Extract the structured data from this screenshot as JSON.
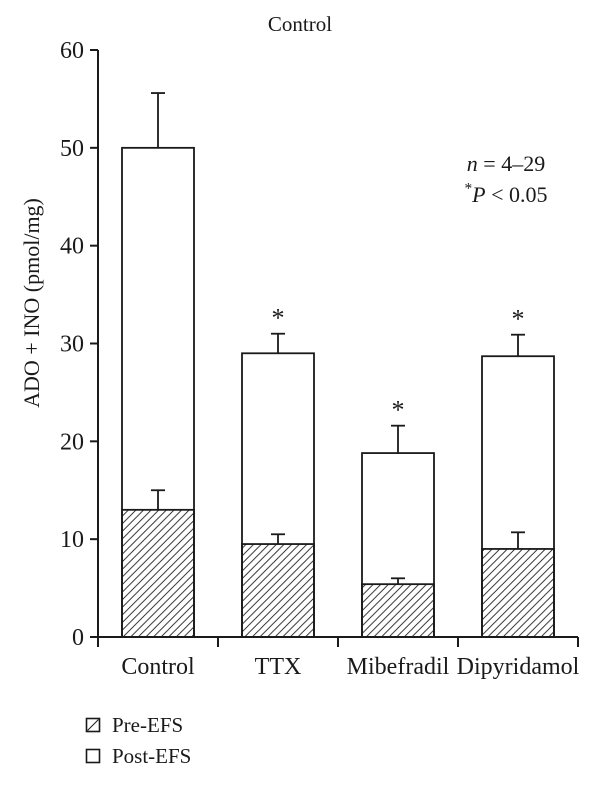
{
  "figure": {
    "title": "Control",
    "y_axis_label": "ADO + INO (pmol/mg)",
    "annotation": {
      "n_var": "n",
      "n_rest": " = 4–29",
      "star": "*",
      "p_var": "P",
      "p_rest": " < 0.05"
    },
    "legend": [
      {
        "label": "Pre-EFS",
        "swatch": "hatched"
      },
      {
        "label": "Post-EFS",
        "swatch": "white"
      }
    ]
  },
  "chart_data": {
    "type": "bar",
    "stacked": true,
    "title": "Control",
    "xlabel": "",
    "ylabel": "ADO + INO (pmol/mg)",
    "ylim": [
      0,
      60
    ],
    "yticks": [
      0,
      10,
      20,
      30,
      40,
      50,
      60
    ],
    "grid": false,
    "legend_position": "bottom-left",
    "categories": [
      "Control",
      "TTX",
      "Mibefradil",
      "Dipyridamol"
    ],
    "series": [
      {
        "name": "Pre-EFS",
        "style": "hatched",
        "segment": "bottom, from 0 to value",
        "values": [
          13,
          9.5,
          5.4,
          9
        ],
        "errors": [
          2.0,
          1.0,
          0.6,
          1.7
        ]
      },
      {
        "name": "Post-EFS",
        "style": "white",
        "segment": "top, stack total (bar top) value",
        "values": [
          50,
          29,
          18.8,
          28.7
        ],
        "errors": [
          5.6,
          2.0,
          2.8,
          2.2
        ]
      }
    ],
    "significance": [
      false,
      true,
      true,
      true
    ],
    "sig_symbol": "*"
  }
}
